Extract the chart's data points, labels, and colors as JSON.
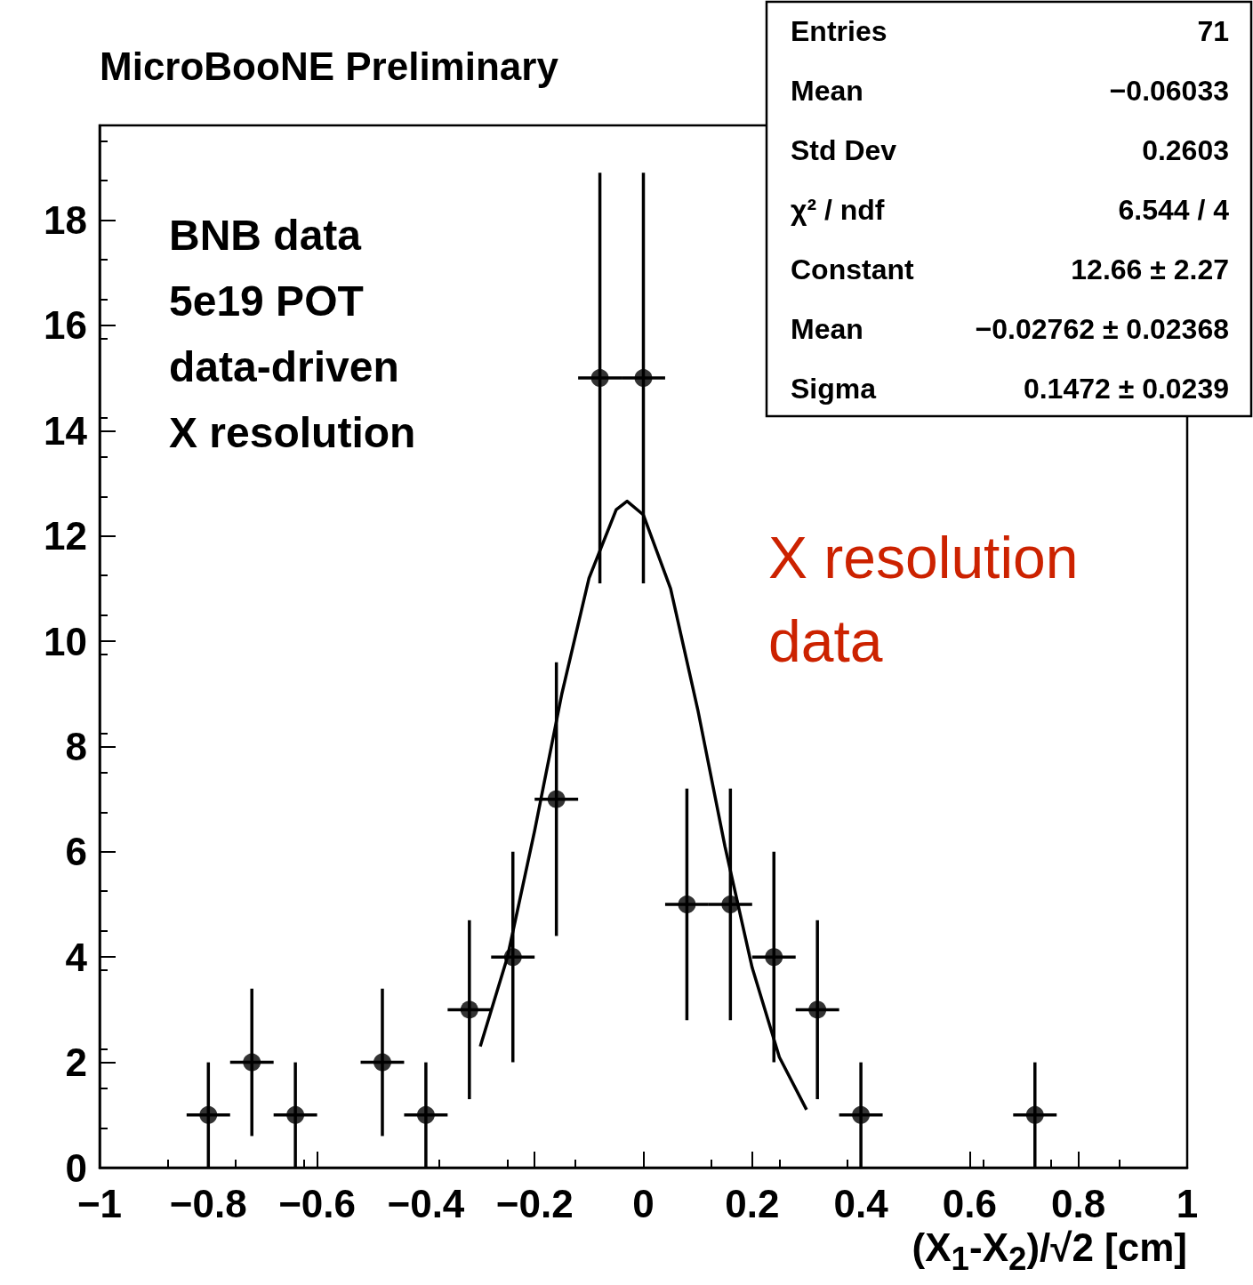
{
  "chart_data": {
    "type": "scatter",
    "title": "MicroBooNE Preliminary",
    "xlabel": "(X$_{1}$-X$_{2}$)/√2 [cm]",
    "annotations": [
      "BNB data",
      "5e19 POT",
      "data-driven",
      "X resolution",
      "X resolution\ndata",
      "Entries",
      "71",
      "Mean",
      "−0.06033",
      "Std Dev",
      "0.2603",
      "χ² / ndf",
      "6.544 / 4",
      "Constant",
      "12.66 ± 2.27",
      "Mean",
      "−0.02762 ± 0.02368",
      "Sigma",
      "0.1472 ± 0.0239"
    ],
    "series": [
      {
        "type": "scatter",
        "color": "#000000",
        "x": [
          -0.8,
          -0.72,
          -0.64,
          -0.48,
          -0.4,
          -0.32,
          -0.24,
          -0.16,
          -0.08,
          0,
          0.08,
          0.16,
          0.24,
          0.32,
          0.4,
          0.72
        ],
        "values": [
          1,
          2,
          1,
          2,
          1,
          3,
          4,
          7,
          15,
          15,
          5,
          5,
          4,
          3,
          1,
          1
        ],
        "errors": [
          1,
          1.4,
          1,
          1.4,
          1,
          1.7,
          2,
          2.6,
          3.9,
          3.9,
          2.2,
          2.2,
          2,
          1.7,
          1,
          1
        ],
        "xerrors": [
          0.04,
          0.04,
          0.04,
          0.04,
          0.04,
          0.04,
          0.04,
          0.04,
          0.04,
          0.04,
          0.04,
          0.04,
          0.04,
          0.04,
          0.04,
          0.04
        ],
        "marker": "circle"
      },
      {
        "type": "line",
        "color": "#000000",
        "marker": "none",
        "line_style": "solid",
        "x": [
          -0.3,
          -0.25,
          -0.2,
          -0.15,
          -0.1,
          -0.05,
          -0.03,
          0,
          0.05,
          0.1,
          0.15,
          0.2,
          0.25,
          0.3
        ],
        "values": [
          2.3,
          4.0,
          6.4,
          9.0,
          11.2,
          12.5,
          12.66,
          12.4,
          11.0,
          8.7,
          6.1,
          3.8,
          2.1,
          1.1
        ]
      }
    ],
    "xlim": [
      -1,
      1
    ],
    "xticks": [
      {
        "value": -1,
        "label": "−1"
      },
      {
        "value": -0.8,
        "label": "−0.8"
      },
      {
        "value": -0.6,
        "label": "−0.6"
      },
      {
        "value": -0.4,
        "label": "−0.4"
      },
      {
        "value": -0.2,
        "label": "−0.2"
      },
      0,
      0.2,
      0.4,
      0.6,
      0.8,
      1
    ],
    "ylim": [
      0,
      19.8
    ],
    "yticks": [
      0,
      2,
      4,
      6,
      8,
      10,
      12,
      14,
      16,
      18
    ],
    "grid": false
  }
}
